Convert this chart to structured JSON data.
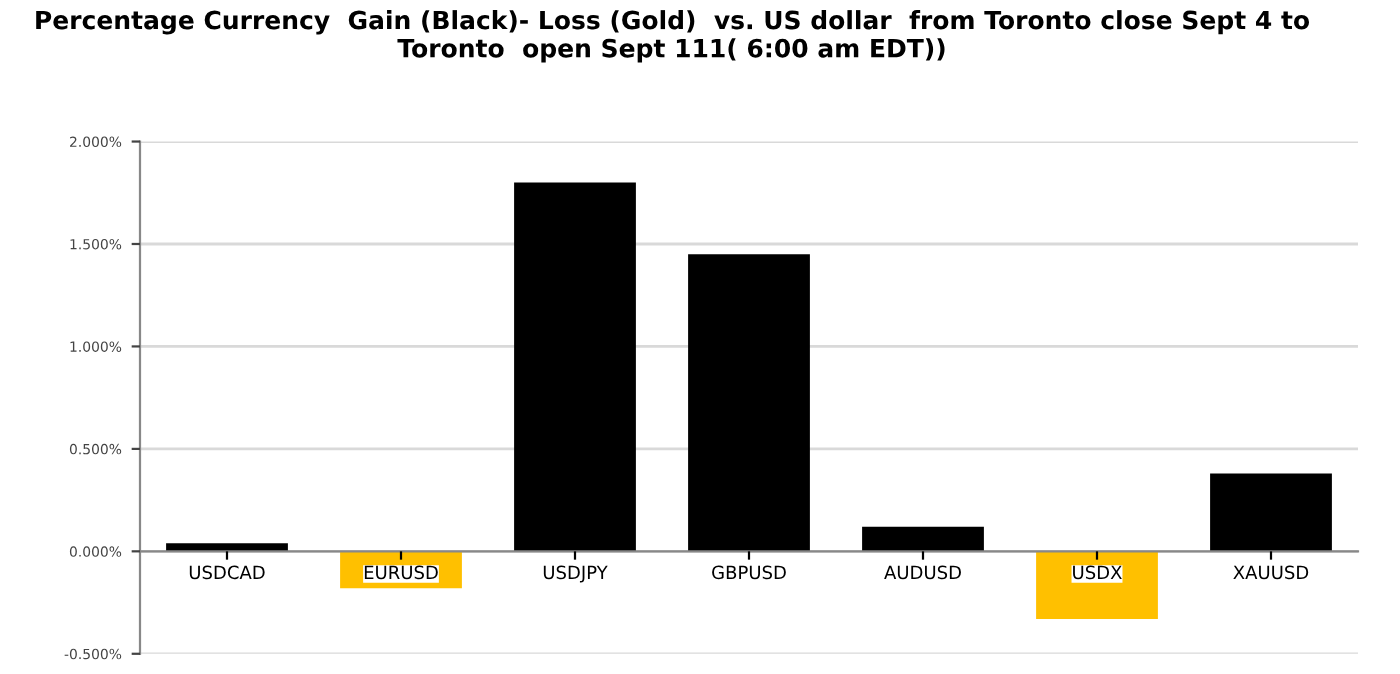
{
  "chart_data": {
    "type": "bar",
    "title": "Percentage Currency  Gain (Black)- Loss (Gold)  vs. US dollar  from Toronto close Sept 4 to Toronto  open Sept 111( 6:00 am EDT))",
    "categories": [
      "USDCAD",
      "EURUSD",
      "USDJPY",
      "GBPUSD",
      "AUDUSD",
      "USDX",
      "XAUUSD"
    ],
    "values": [
      0.04,
      -0.18,
      1.8,
      1.45,
      0.12,
      -0.33,
      0.38
    ],
    "colors": [
      "#000000",
      "#ffc000",
      "#000000",
      "#000000",
      "#000000",
      "#ffc000",
      "#000000"
    ],
    "ylim": [
      -0.5,
      2.0
    ],
    "yticks": [
      {
        "value": -0.5,
        "label": "-0.500%"
      },
      {
        "value": 0,
        "label": "0.000%"
      },
      {
        "value": 0.5,
        "label": "0.500%"
      },
      {
        "value": 1.0,
        "label": "1.000%"
      },
      {
        "value": 1.5,
        "label": "1.500%"
      },
      {
        "value": 2.0,
        "label": "2.000%"
      }
    ],
    "grid": "y"
  }
}
